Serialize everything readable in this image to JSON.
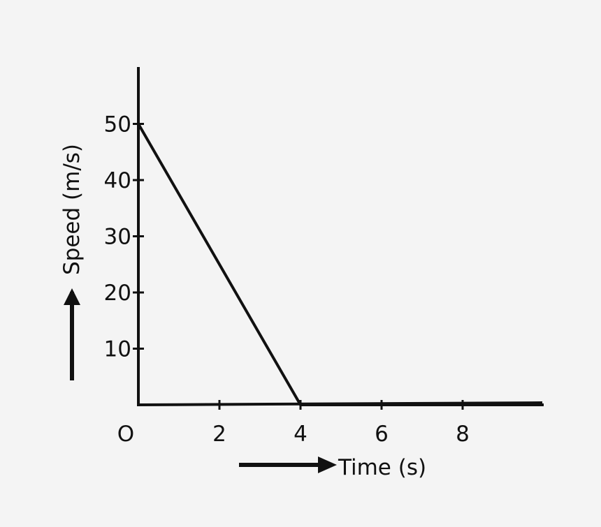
{
  "chart_data": {
    "type": "line",
    "title": "",
    "xlabel": "Time (s)",
    "ylabel": "Speed (m/s)",
    "origin_label": "O",
    "xlim": [
      0,
      10
    ],
    "ylim": [
      0,
      60
    ],
    "x_ticks": [
      2,
      4,
      6,
      8
    ],
    "x_tick_labels": [
      "2",
      "4",
      "6",
      "8"
    ],
    "y_ticks": [
      10,
      20,
      30,
      40,
      50
    ],
    "y_tick_labels": [
      "10",
      "20",
      "30",
      "40",
      "50"
    ],
    "grid": false,
    "series": [
      {
        "x": [
          0,
          4,
          10
        ],
        "y": [
          50,
          0,
          0
        ]
      }
    ],
    "colors": {
      "line": "#111111",
      "background": "#f4f4f4"
    }
  }
}
